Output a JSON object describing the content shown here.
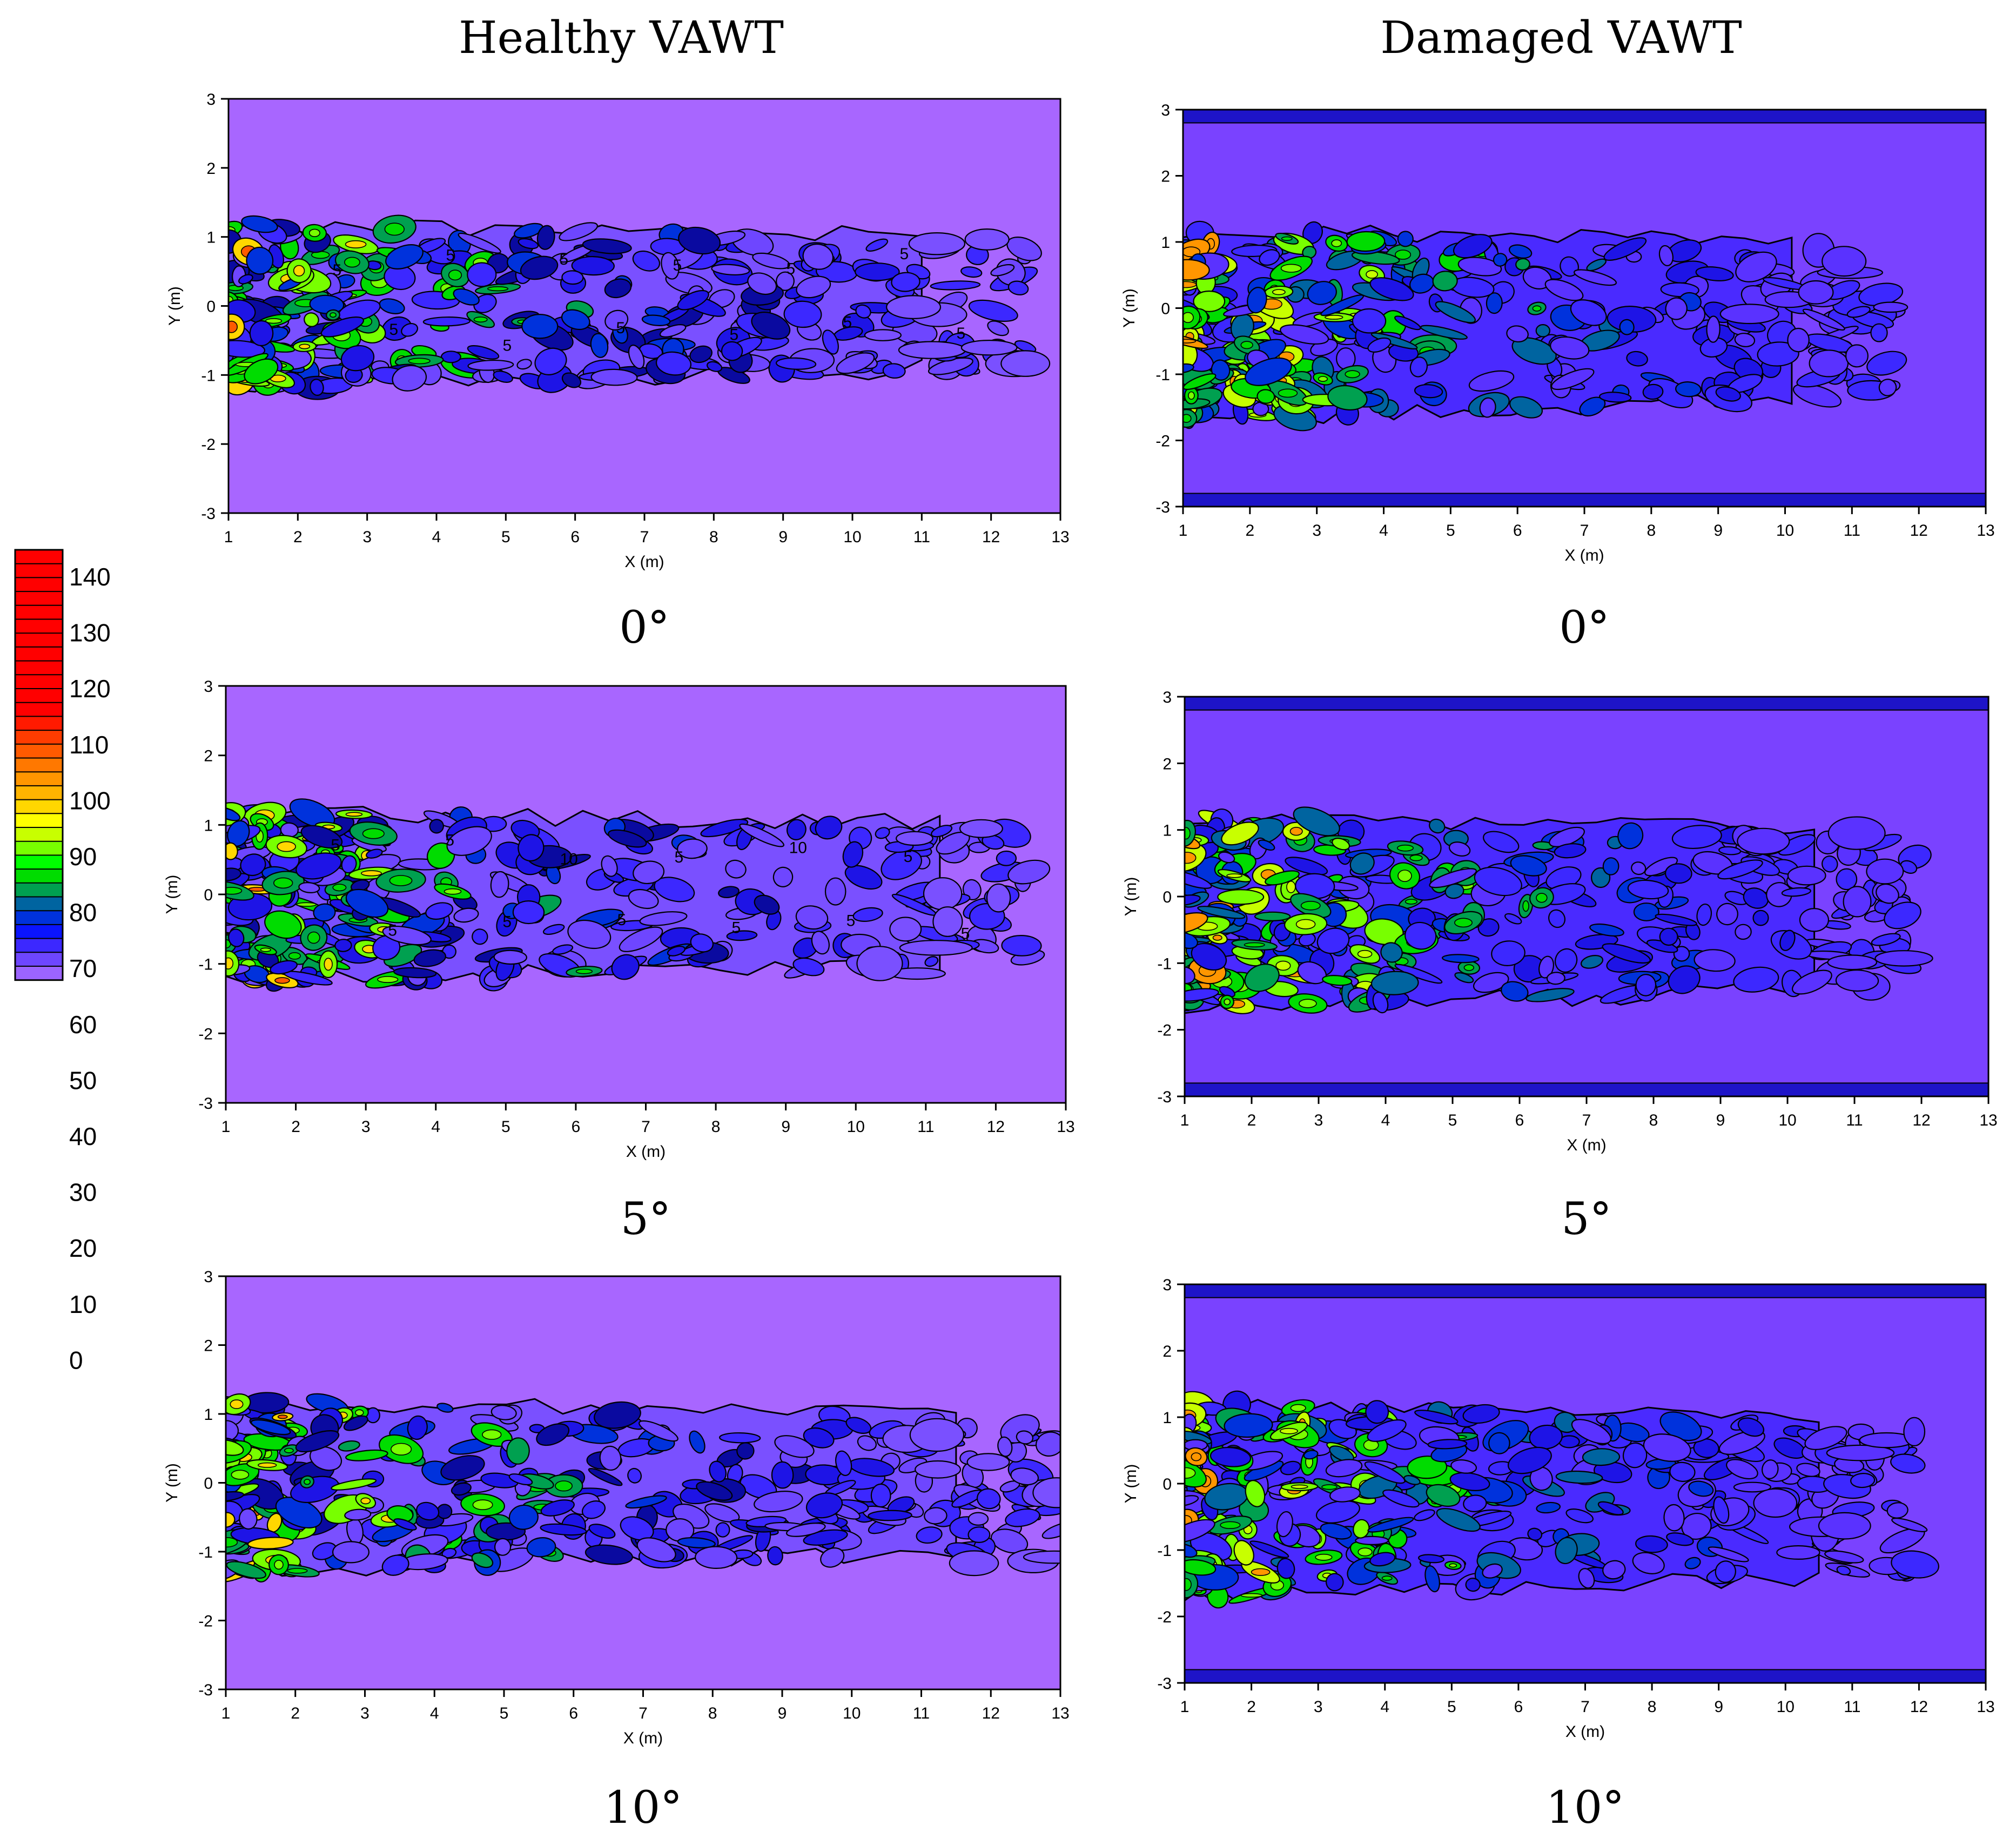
{
  "columns": {
    "left": "Healthy VAWT",
    "right": "Damaged VAWT"
  },
  "colorbar": {
    "ticks": [
      "140",
      "130",
      "120",
      "110",
      "100",
      "90",
      "80",
      "70",
      "60",
      "50",
      "40",
      "30",
      "20",
      "10",
      "0"
    ],
    "colors": [
      "#ff0000",
      "#ff0000",
      "#ff0000",
      "#ff0000",
      "#ff0000",
      "#ff0000",
      "#ff0000",
      "#ff0000",
      "#ff0000",
      "#ff0000",
      "#ff0000",
      "#ff0000",
      "#ff1a00",
      "#ff3c00",
      "#ff5a00",
      "#ff7800",
      "#ff9600",
      "#ffb400",
      "#ffd700",
      "#ffff00",
      "#c8ff00",
      "#78ff00",
      "#00ff00",
      "#00dc00",
      "#00a050",
      "#0064a0",
      "#0032dc",
      "#0a14ff",
      "#3c28ff",
      "#6e46ff",
      "#9c64ff"
    ]
  },
  "chart_data": [
    {
      "type": "contour",
      "panel": "healthy-0",
      "column": "Healthy VAWT",
      "caption": "0°",
      "xlabel": "X (m)",
      "ylabel": "Y (m)",
      "xlim": [
        1,
        13
      ],
      "ylim": [
        -3,
        3
      ],
      "xticks": [
        "1",
        "2",
        "3",
        "4",
        "5",
        "6",
        "7",
        "8",
        "9",
        "10",
        "11",
        "12",
        "13"
      ],
      "yticks": [
        "3",
        "2",
        "1",
        "0",
        "-1",
        "-2",
        "-3"
      ],
      "contour_labels": [
        "5",
        "5",
        "5",
        "5",
        "5",
        "5",
        "5",
        "5",
        "5",
        "5",
        "5",
        "5"
      ],
      "background": "#a866ff",
      "wake_extent_x": [
        1,
        12.5
      ],
      "wake_extent_y": [
        -1.3,
        1.3
      ]
    },
    {
      "type": "contour",
      "panel": "damaged-0",
      "column": "Damaged VAWT",
      "caption": "0°",
      "xlabel": "X (m)",
      "ylabel": "Y (m)",
      "xlim": [
        1,
        13
      ],
      "ylim": [
        -3,
        3
      ],
      "xticks": [
        "1",
        "2",
        "3",
        "4",
        "5",
        "6",
        "7",
        "8",
        "9",
        "10",
        "11",
        "12",
        "13"
      ],
      "yticks": [
        "3",
        "2",
        "1",
        "0",
        "-1",
        "-2",
        "-3"
      ],
      "contour_labels": [],
      "background": "#7a42ff",
      "wake_extent_x": [
        1,
        11.6
      ],
      "wake_extent_y": [
        -1.8,
        1.3
      ]
    },
    {
      "type": "contour",
      "panel": "healthy-5",
      "column": "Healthy VAWT",
      "caption": "5°",
      "xlabel": "X (m)",
      "ylabel": "Y (m)",
      "xlim": [
        1,
        13
      ],
      "ylim": [
        -3,
        3
      ],
      "xticks": [
        "1",
        "2",
        "3",
        "4",
        "5",
        "6",
        "7",
        "8",
        "9",
        "10",
        "11",
        "12",
        "13"
      ],
      "yticks": [
        "3",
        "2",
        "1",
        "0",
        "-1",
        "-2",
        "-3"
      ],
      "contour_labels": [
        "5",
        "5",
        "5",
        "5",
        "10",
        "5",
        "5",
        "5",
        "10",
        "5",
        "5",
        "5"
      ],
      "background": "#a866ff",
      "wake_extent_x": [
        1,
        12.7
      ],
      "wake_extent_y": [
        -1.4,
        1.3
      ]
    },
    {
      "type": "contour",
      "panel": "damaged-5",
      "column": "Damaged VAWT",
      "caption": "5°",
      "xlabel": "X (m)",
      "ylabel": "Y (m)",
      "xlim": [
        1,
        13
      ],
      "ylim": [
        -3,
        3
      ],
      "xticks": [
        "1",
        "2",
        "3",
        "4",
        "5",
        "6",
        "7",
        "8",
        "9",
        "10",
        "11",
        "12",
        "13"
      ],
      "yticks": [
        "3",
        "2",
        "1",
        "0",
        "-1",
        "-2",
        "-3"
      ],
      "contour_labels": [],
      "background": "#7a42ff",
      "wake_extent_x": [
        1,
        11.9
      ],
      "wake_extent_y": [
        -1.8,
        1.3
      ]
    },
    {
      "type": "contour",
      "panel": "healthy-10",
      "column": "Healthy VAWT",
      "caption": "10°",
      "xlabel": "X (m)",
      "ylabel": "Y (m)",
      "xlim": [
        1,
        13
      ],
      "ylim": [
        -3,
        3
      ],
      "xticks": [
        "1",
        "2",
        "3",
        "4",
        "5",
        "6",
        "7",
        "8",
        "9",
        "10",
        "11",
        "12",
        "13"
      ],
      "yticks": [
        "3",
        "2",
        "1",
        "0",
        "-1",
        "-2",
        "-3"
      ],
      "contour_labels": [],
      "background": "#a866ff",
      "wake_extent_x": [
        1,
        13
      ],
      "wake_extent_y": [
        -1.4,
        1.3
      ]
    },
    {
      "type": "contour",
      "panel": "damaged-10",
      "column": "Damaged VAWT",
      "caption": "10°",
      "xlabel": "X (m)",
      "ylabel": "Y (m)",
      "xlim": [
        1,
        13
      ],
      "ylim": [
        -3,
        3
      ],
      "xticks": [
        "1",
        "2",
        "3",
        "4",
        "5",
        "6",
        "7",
        "8",
        "9",
        "10",
        "11",
        "12",
        "13"
      ],
      "yticks": [
        "3",
        "2",
        "1",
        "0",
        "-1",
        "-2",
        "-3"
      ],
      "contour_labels": [],
      "background": "#7a42ff",
      "wake_extent_x": [
        1,
        12
      ],
      "wake_extent_y": [
        -1.8,
        1.3
      ]
    }
  ]
}
